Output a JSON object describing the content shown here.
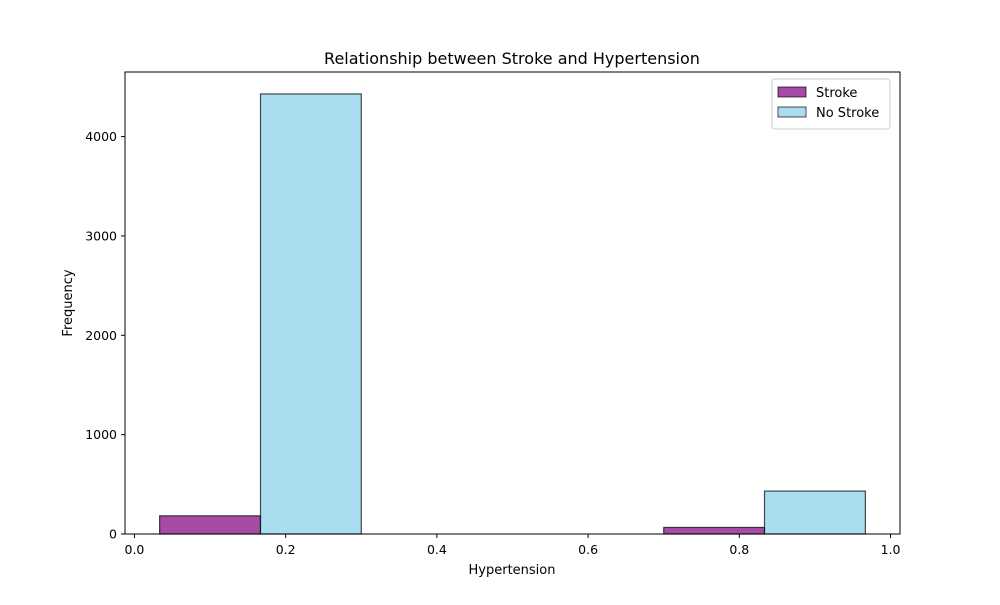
{
  "chart_data": {
    "type": "bar",
    "title": "Relationship between Stroke and Hypertension",
    "xlabel": "Hypertension",
    "ylabel": "Frequency",
    "xlim": [
      -0.0125,
      1.0125
    ],
    "ylim": [
      0,
      4650
    ],
    "x_ticks": [
      0.0,
      0.2,
      0.4,
      0.6,
      0.8,
      1.0
    ],
    "x_tick_labels": [
      "0.0",
      "0.2",
      "0.4",
      "0.6",
      "0.8",
      "1.0"
    ],
    "y_ticks": [
      0,
      1000,
      2000,
      3000,
      4000
    ],
    "y_tick_labels": [
      "0",
      "1000",
      "2000",
      "3000",
      "4000"
    ],
    "legend_position": "top-right",
    "series": [
      {
        "name": "Stroke",
        "color": "#800080",
        "bars": [
          {
            "x0": 0.0333,
            "x1": 0.1667,
            "value": 183
          },
          {
            "x0": 0.3667,
            "x1": 0.5,
            "value": 0
          },
          {
            "x0": 0.7,
            "x1": 0.8333,
            "value": 66
          }
        ]
      },
      {
        "name": "No Stroke",
        "color": "#87CEEB",
        "bars": [
          {
            "x0": 0.1667,
            "x1": 0.3,
            "value": 4429
          },
          {
            "x0": 0.5,
            "x1": 0.6333,
            "value": 0
          },
          {
            "x0": 0.8333,
            "x1": 0.9667,
            "value": 432
          }
        ]
      }
    ]
  }
}
